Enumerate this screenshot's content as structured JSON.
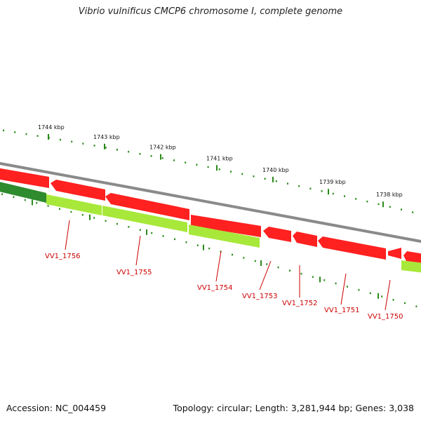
{
  "header": {
    "title": "Vibrio vulnificus CMCP6 chromosome I, complete genome"
  },
  "footer": {
    "accession": "Accession: NC_004459",
    "stats": "Topology: circular; Length: 3,281,944 bp; Genes: 3,038"
  },
  "colors": {
    "backbone": "#8a8a8a",
    "forward_gene": "#ff1a1a",
    "reverse_gene": "#a8e83a",
    "reverse_gene_dark": "#3a9a2a",
    "tick": "#2a8a1a",
    "label": "#cc0000"
  },
  "scale": {
    "unit": "kbp",
    "ticks": [
      {
        "label": "1744 kbp"
      },
      {
        "label": "1743 kbp"
      },
      {
        "label": "1742 kbp"
      },
      {
        "label": "1741 kbp"
      },
      {
        "label": "1740 kbp"
      },
      {
        "label": "1739 kbp"
      },
      {
        "label": "1738 kbp"
      }
    ]
  },
  "gene_labels": [
    {
      "label": "VV1_1756"
    },
    {
      "label": "VV1_1755"
    },
    {
      "label": "VV1_1754"
    },
    {
      "label": "VV1_1753"
    },
    {
      "label": "VV1_1752"
    },
    {
      "label": "VV1_1751"
    },
    {
      "label": "VV1_1750"
    }
  ]
}
